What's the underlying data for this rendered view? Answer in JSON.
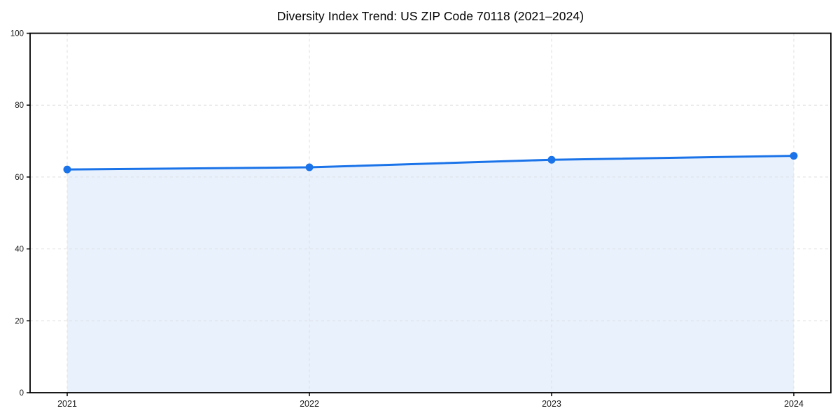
{
  "figure": {
    "background": "#ffffff"
  },
  "chart_data": {
    "type": "area",
    "title": "Diversity Index Trend: US ZIP Code 70118 (2021–2024)",
    "x": [
      "2021",
      "2022",
      "2023",
      "2024"
    ],
    "series": [
      {
        "name": "Diversity Index",
        "values": [
          62.1,
          62.7,
          64.8,
          65.9
        ]
      }
    ],
    "xlabel": "",
    "ylabel": "",
    "ylim": [
      0,
      100
    ],
    "yticks": [
      0,
      20,
      40,
      60,
      80,
      100
    ],
    "grid": true,
    "grid_style": "dashed",
    "legend_position": "none",
    "marker": "circle",
    "colors": {
      "line": "#1a73e8",
      "marker": "#1a73e8",
      "area_fill": "#e9f1fd",
      "grid": "#dedede",
      "spine": "#000000",
      "tick_label": "#1a1a1a",
      "title": "#000000",
      "background": "#ffffff"
    }
  }
}
